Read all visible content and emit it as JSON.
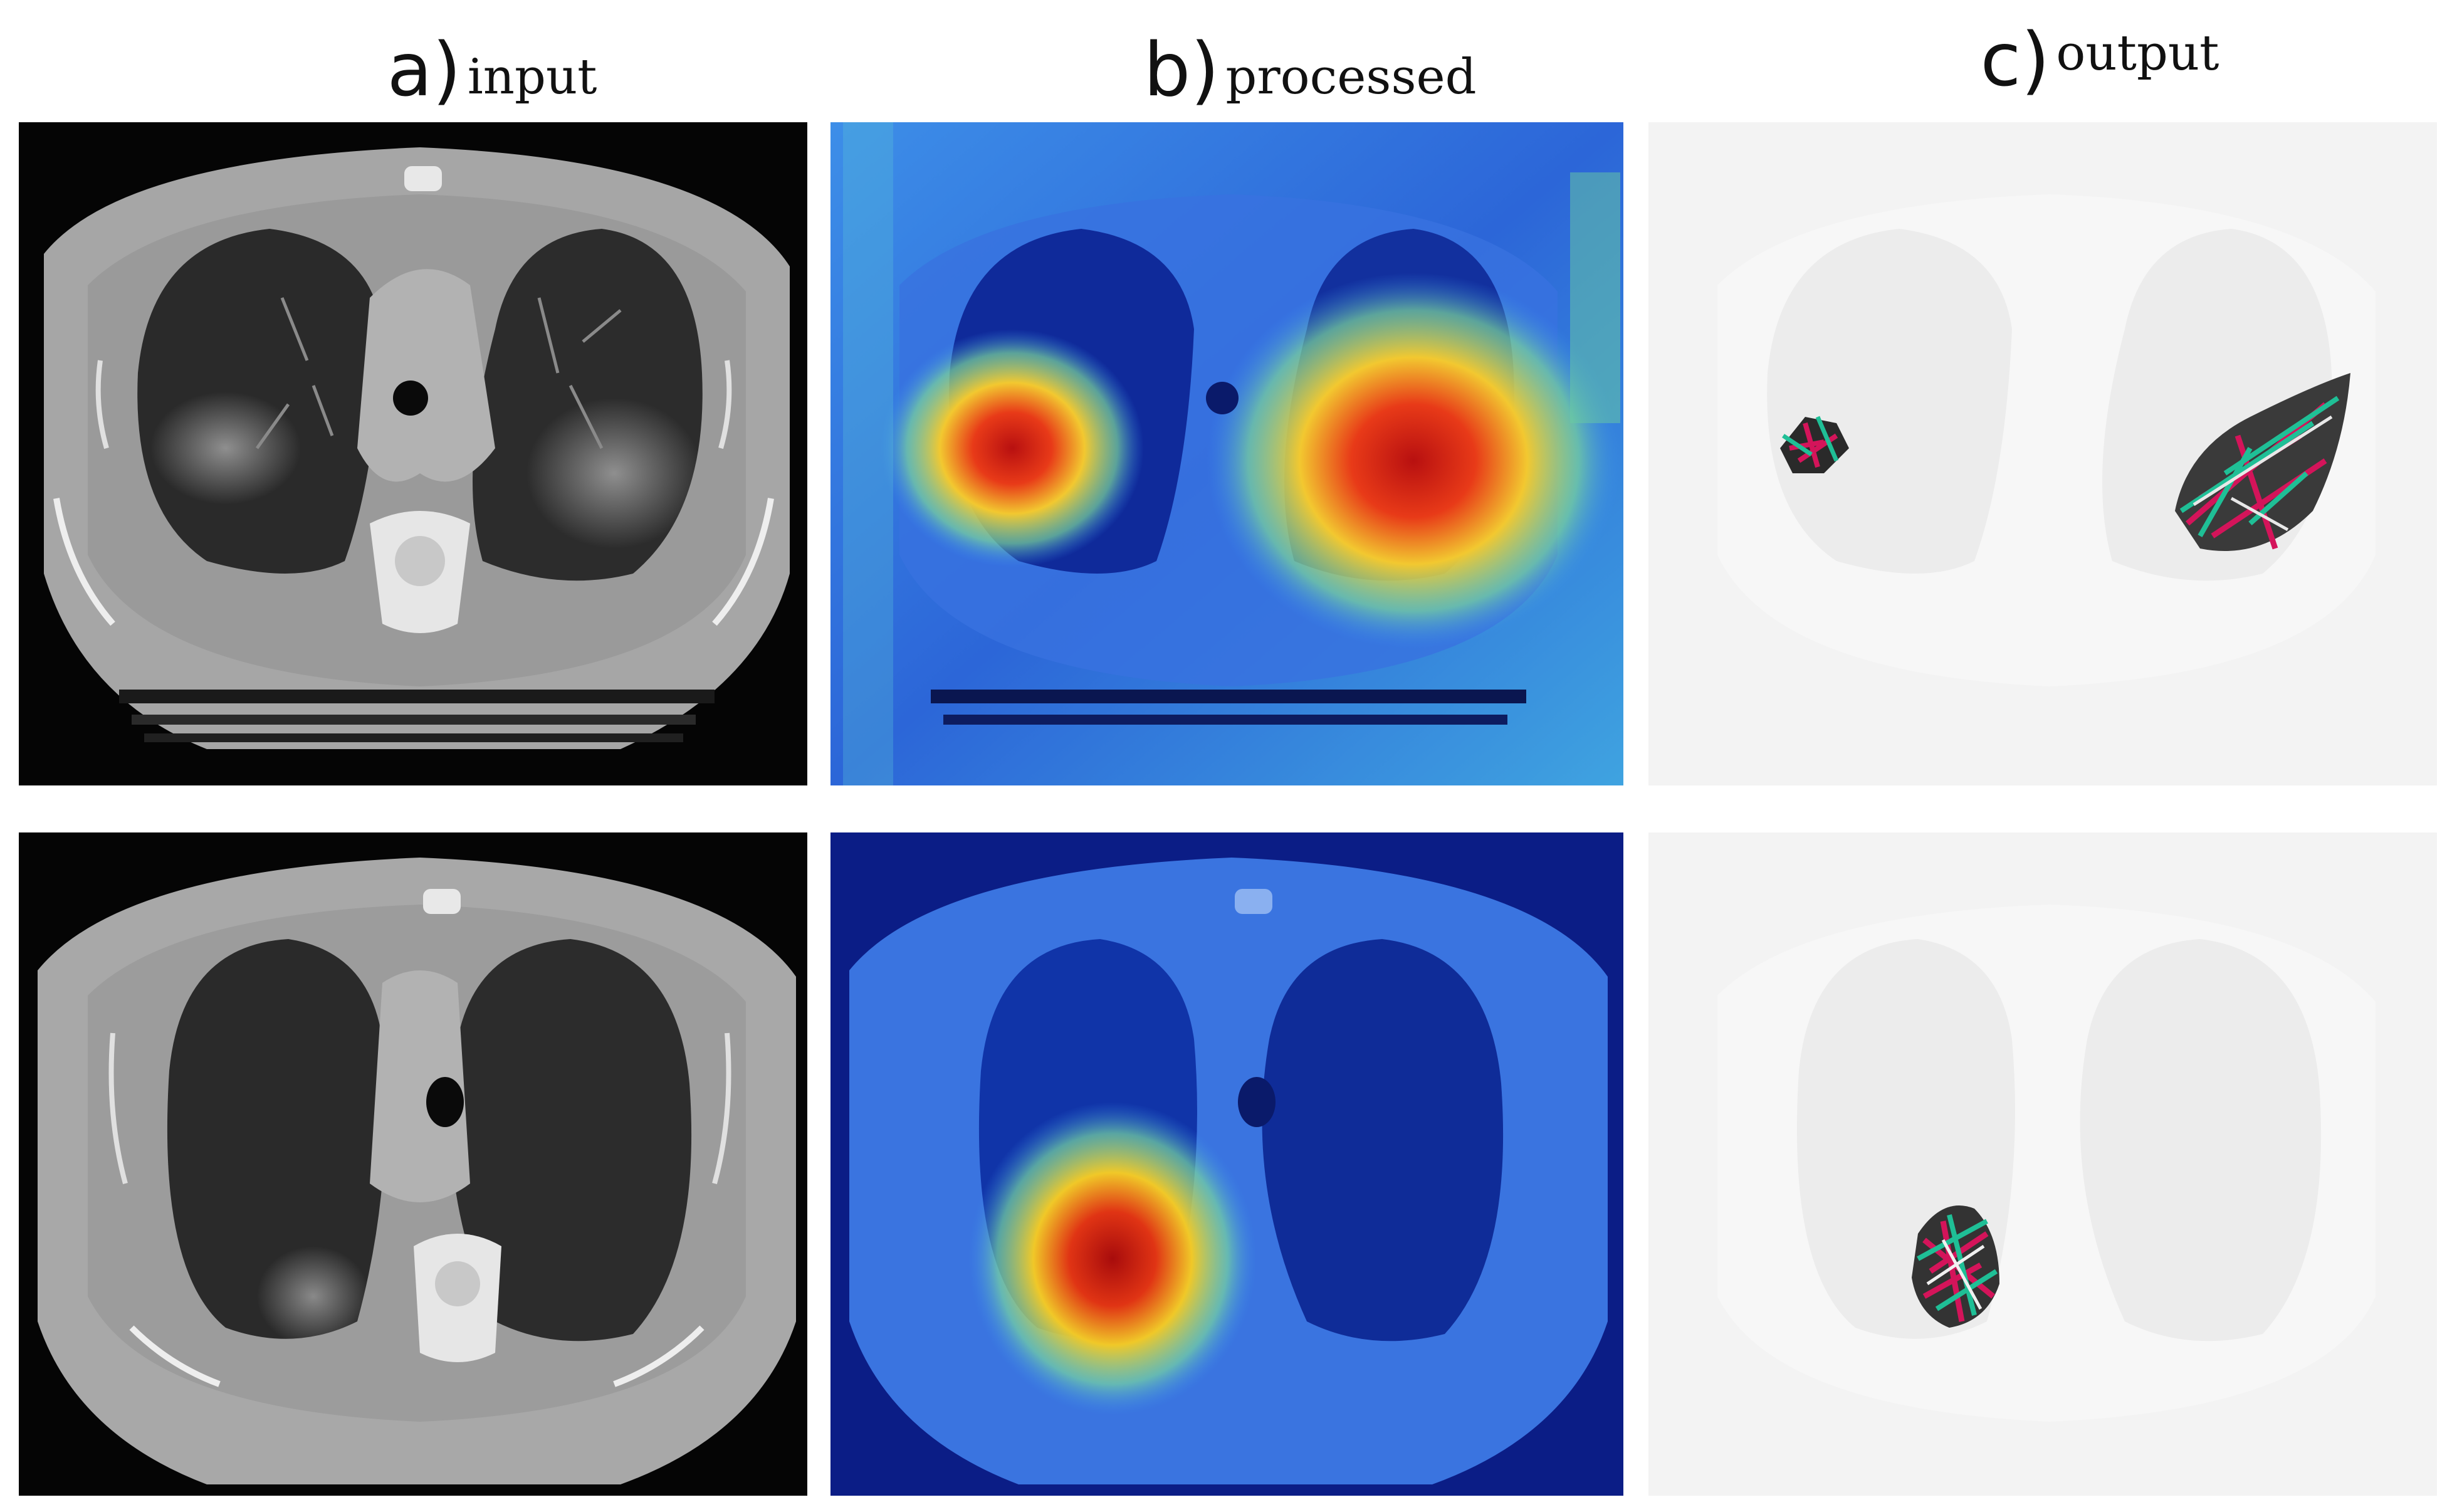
{
  "columns": [
    {
      "letter": "a)",
      "word": "input"
    },
    {
      "letter": "b)",
      "word": "processed"
    },
    {
      "letter": "c)",
      "word": "output"
    }
  ],
  "rows": [
    {
      "row": "top",
      "panels": [
        {
          "type": "ct-scan-grayscale",
          "finding": "bilateral ground-glass opacities"
        },
        {
          "type": "heatmap-overlay",
          "hotspots": [
            "right lung posterior",
            "left lung posterior-lateral"
          ]
        },
        {
          "type": "segmentation-output",
          "lesions": 2
        }
      ]
    },
    {
      "row": "bottom",
      "panels": [
        {
          "type": "ct-scan-grayscale",
          "finding": "right lower lobe opacity"
        },
        {
          "type": "heatmap-overlay",
          "hotspots": [
            "right lung posterior"
          ]
        },
        {
          "type": "segmentation-output",
          "lesions": 1
        }
      ]
    }
  ],
  "colors": {
    "heat_hot": "#d41a10",
    "heat_warm": "#f2e030",
    "heat_cool": "#2a6cf0",
    "heat_cold": "#0b1d86",
    "lesion_magenta": "#d4145a",
    "lesion_teal": "#1fbf96"
  }
}
